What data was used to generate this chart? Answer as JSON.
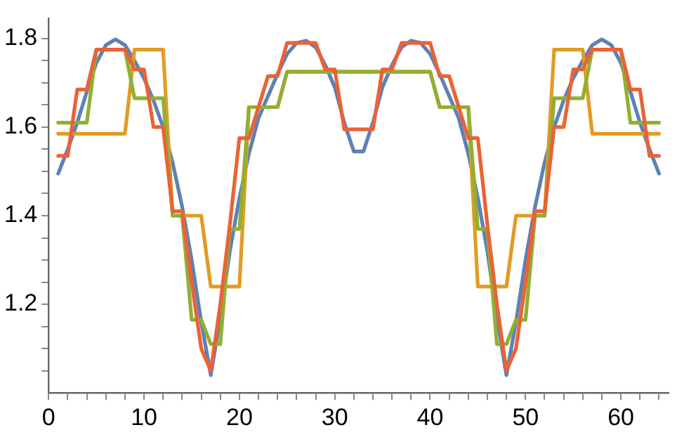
{
  "chart_data": {
    "type": "line",
    "x": [
      1,
      2,
      3,
      4,
      5,
      6,
      7,
      8,
      9,
      10,
      11,
      12,
      13,
      14,
      15,
      16,
      17,
      18,
      19,
      20,
      21,
      22,
      23,
      24,
      25,
      26,
      27,
      28,
      29,
      30,
      31,
      32,
      33,
      34,
      35,
      36,
      37,
      38,
      39,
      40,
      41,
      42,
      43,
      44,
      45,
      46,
      47,
      48,
      49,
      50,
      51,
      52,
      53,
      54,
      55,
      56,
      57,
      58,
      59,
      60,
      61,
      62,
      63,
      64
    ],
    "series": [
      {
        "color": "#5e81b5",
        "values": [
          1.495,
          1.55,
          1.61,
          1.68,
          1.745,
          1.785,
          1.798,
          1.785,
          1.75,
          1.71,
          1.66,
          1.6,
          1.52,
          1.42,
          1.3,
          1.16,
          1.04,
          1.17,
          1.32,
          1.44,
          1.54,
          1.62,
          1.67,
          1.72,
          1.765,
          1.79,
          1.795,
          1.78,
          1.74,
          1.69,
          1.61,
          1.545,
          1.545,
          1.61,
          1.69,
          1.74,
          1.78,
          1.795,
          1.79,
          1.765,
          1.72,
          1.67,
          1.62,
          1.54,
          1.44,
          1.32,
          1.17,
          1.04,
          1.16,
          1.3,
          1.42,
          1.52,
          1.6,
          1.66,
          1.71,
          1.75,
          1.785,
          1.798,
          1.785,
          1.745,
          1.68,
          1.61,
          1.55,
          1.495
        ]
      },
      {
        "color": "#e19c24",
        "values": [
          1.585,
          1.585,
          1.585,
          1.585,
          1.585,
          1.585,
          1.585,
          1.585,
          1.775,
          1.775,
          1.775,
          1.775,
          1.4,
          1.4,
          1.4,
          1.4,
          1.24,
          1.24,
          1.24,
          1.24,
          1.645,
          1.645,
          1.645,
          1.645,
          1.725,
          1.725,
          1.725,
          1.725,
          1.725,
          1.725,
          1.725,
          1.725,
          1.725,
          1.725,
          1.725,
          1.725,
          1.725,
          1.725,
          1.725,
          1.725,
          1.645,
          1.645,
          1.645,
          1.645,
          1.24,
          1.24,
          1.24,
          1.24,
          1.4,
          1.4,
          1.4,
          1.4,
          1.775,
          1.775,
          1.775,
          1.775,
          1.585,
          1.585,
          1.585,
          1.585,
          1.585,
          1.585,
          1.585,
          1.585
        ]
      },
      {
        "color": "#8fb032",
        "values": [
          1.61,
          1.61,
          1.61,
          1.61,
          1.775,
          1.775,
          1.775,
          1.775,
          1.665,
          1.665,
          1.665,
          1.665,
          1.4,
          1.4,
          1.165,
          1.165,
          1.11,
          1.11,
          1.37,
          1.37,
          1.645,
          1.645,
          1.645,
          1.645,
          1.725,
          1.725,
          1.725,
          1.725,
          1.725,
          1.725,
          1.725,
          1.725,
          1.725,
          1.725,
          1.725,
          1.725,
          1.725,
          1.725,
          1.725,
          1.725,
          1.645,
          1.645,
          1.645,
          1.645,
          1.37,
          1.37,
          1.11,
          1.11,
          1.165,
          1.165,
          1.4,
          1.4,
          1.665,
          1.665,
          1.665,
          1.665,
          1.775,
          1.775,
          1.775,
          1.775,
          1.61,
          1.61,
          1.61,
          1.61
        ]
      },
      {
        "color": "#eb6235",
        "values": [
          1.535,
          1.535,
          1.685,
          1.685,
          1.775,
          1.775,
          1.775,
          1.775,
          1.73,
          1.73,
          1.6,
          1.6,
          1.41,
          1.41,
          1.25,
          1.1,
          1.05,
          1.2,
          1.38,
          1.575,
          1.575,
          1.645,
          1.715,
          1.715,
          1.79,
          1.79,
          1.79,
          1.79,
          1.73,
          1.73,
          1.595,
          1.595,
          1.595,
          1.595,
          1.73,
          1.73,
          1.79,
          1.79,
          1.79,
          1.79,
          1.715,
          1.715,
          1.645,
          1.575,
          1.575,
          1.38,
          1.2,
          1.05,
          1.1,
          1.25,
          1.41,
          1.41,
          1.6,
          1.6,
          1.73,
          1.73,
          1.775,
          1.775,
          1.775,
          1.775,
          1.685,
          1.685,
          1.535,
          1.535
        ]
      }
    ],
    "xlim": [
      0,
      65
    ],
    "xticks": [
      0,
      {
        "value": 2,
        "label": null
      },
      {
        "value": 4,
        "label": null
      },
      {
        "value": 6,
        "label": null
      },
      {
        "value": 8,
        "label": null
      },
      10,
      {
        "value": 12,
        "label": null
      },
      {
        "value": 14,
        "label": null
      },
      {
        "value": 16,
        "label": null
      },
      {
        "value": 18,
        "label": null
      },
      20,
      {
        "value": 22,
        "label": null
      },
      {
        "value": 24,
        "label": null
      },
      {
        "value": 26,
        "label": null
      },
      {
        "value": 28,
        "label": null
      },
      30,
      {
        "value": 32,
        "label": null
      },
      {
        "value": 34,
        "label": null
      },
      {
        "value": 36,
        "label": null
      },
      {
        "value": 38,
        "label": null
      },
      40,
      {
        "value": 42,
        "label": null
      },
      {
        "value": 44,
        "label": null
      },
      {
        "value": 46,
        "label": null
      },
      {
        "value": 48,
        "label": null
      },
      50,
      {
        "value": 52,
        "label": null
      },
      {
        "value": 54,
        "label": null
      },
      {
        "value": 56,
        "label": null
      },
      {
        "value": 58,
        "label": null
      },
      60,
      {
        "value": 62,
        "label": null
      },
      {
        "value": 64,
        "label": null
      }
    ],
    "ylim": [
      1.0,
      1.845
    ],
    "yticks": [
      {
        "value": 1.05,
        "label": null
      },
      {
        "value": 1.1,
        "label": null
      },
      {
        "value": 1.15,
        "label": null
      },
      {
        "value": 1.2,
        "label": "1.2"
      },
      {
        "value": 1.25,
        "label": null
      },
      {
        "value": 1.3,
        "label": null
      },
      {
        "value": 1.35,
        "label": null
      },
      {
        "value": 1.4,
        "label": "1.4"
      },
      {
        "value": 1.45,
        "label": null
      },
      {
        "value": 1.5,
        "label": null
      },
      {
        "value": 1.55,
        "label": null
      },
      {
        "value": 1.6,
        "label": "1.6"
      },
      {
        "value": 1.65,
        "label": null
      },
      {
        "value": 1.7,
        "label": null
      },
      {
        "value": 1.75,
        "label": null
      },
      {
        "value": 1.8,
        "label": "1.8"
      }
    ],
    "grid": false,
    "legend": false,
    "marker": "none",
    "line_style": "solid"
  }
}
